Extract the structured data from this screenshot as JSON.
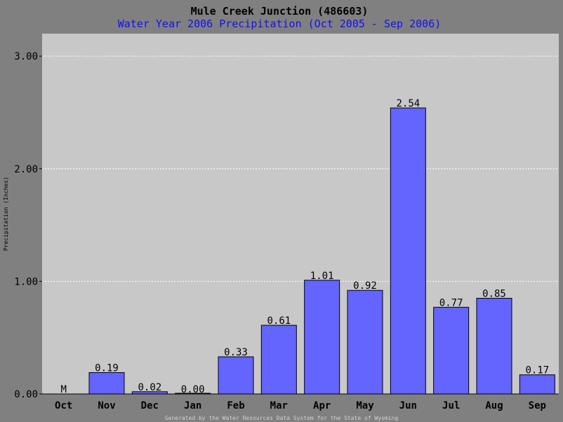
{
  "chart_data": {
    "type": "bar",
    "title": "Mule Creek Junction (486603)",
    "subtitle": "Water Year 2006 Precipitation (Oct 2005 - Sep 2006)",
    "ylabel": "Precipitation (Inches)",
    "xlabel": "",
    "ylim": [
      0,
      3.2
    ],
    "yticks": [
      "0.00",
      "1.00",
      "2.00",
      "3.00"
    ],
    "ytick_values": [
      0,
      1,
      2,
      3
    ],
    "grid": true,
    "categories": [
      "Oct",
      "Nov",
      "Dec",
      "Jan",
      "Feb",
      "Mar",
      "Apr",
      "May",
      "Jun",
      "Jul",
      "Aug",
      "Sep"
    ],
    "values": [
      null,
      0.19,
      0.02,
      0.0,
      0.33,
      0.61,
      1.01,
      0.92,
      2.54,
      0.77,
      0.85,
      0.17
    ],
    "value_labels": [
      "M",
      "0.19",
      "0.02",
      "0.00",
      "0.33",
      "0.61",
      "1.01",
      "0.92",
      "2.54",
      "0.77",
      "0.85",
      "0.17"
    ],
    "missing_marker": "M",
    "footer": "Generated by the Water Resources Data System for the State of Wyoming"
  },
  "colors": {
    "background": "#808080",
    "plot_area": "#c8c8c8",
    "bar": "#6464ff",
    "subtitle": "#1010ff",
    "missing": "#ff0000",
    "grid": "#ffffff"
  }
}
